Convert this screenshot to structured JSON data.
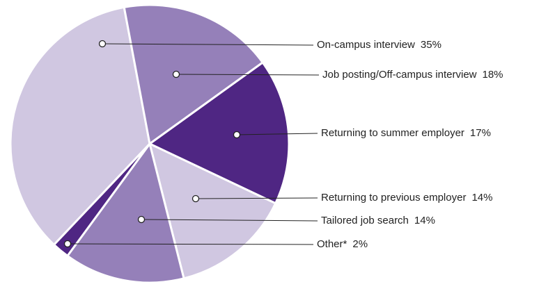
{
  "chart_data": {
    "type": "pie",
    "categories": [
      "On-campus interview",
      "Job posting/Off-campus interview",
      "Returning to summer employer",
      "Returning to previous employer",
      "Tailored job search",
      "Other*"
    ],
    "values": [
      35,
      18,
      17,
      14,
      14,
      2
    ],
    "value_labels": [
      "35%",
      "18%",
      "17%",
      "14%",
      "14%",
      "2%"
    ],
    "colors": [
      "#d0c7e1",
      "#9580b9",
      "#4f2683",
      "#d0c7e1",
      "#9580b9",
      "#4f2683"
    ]
  }
}
